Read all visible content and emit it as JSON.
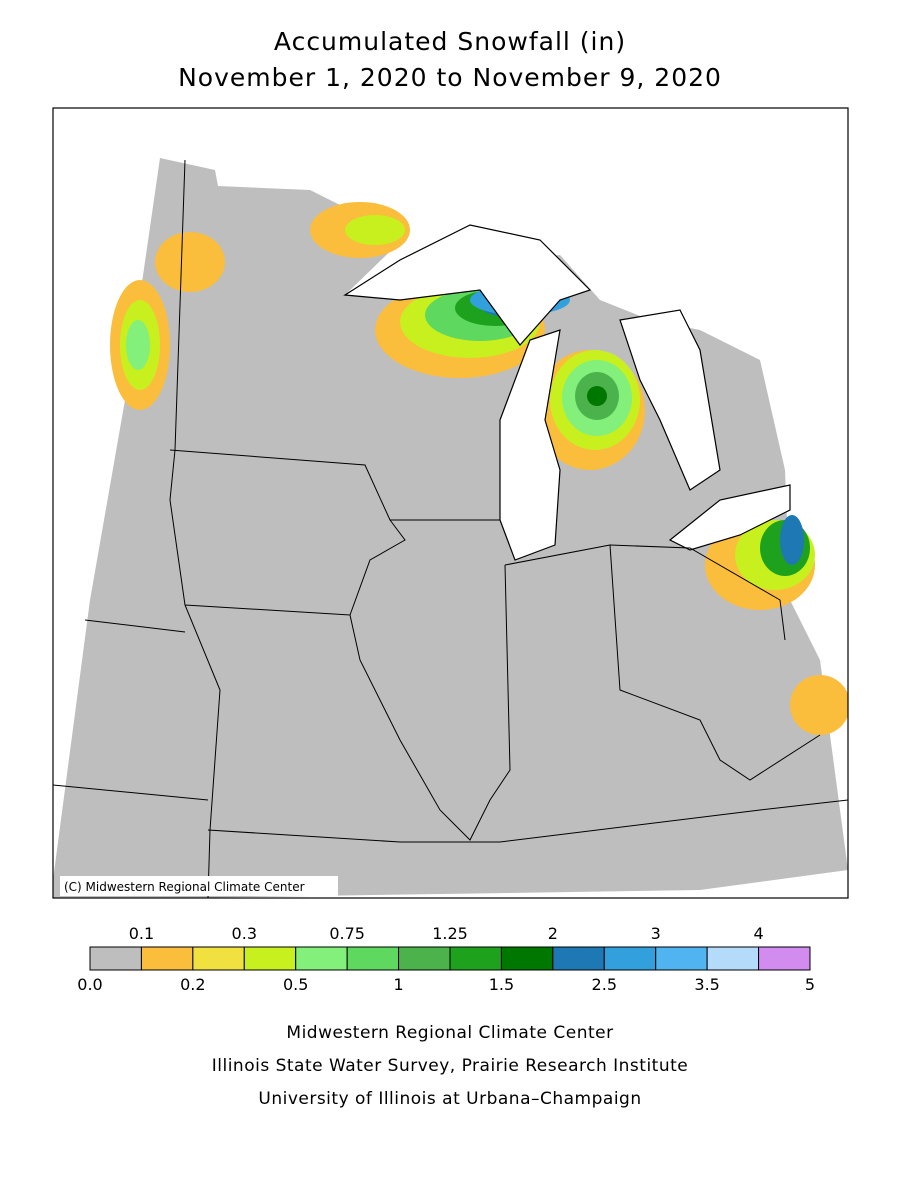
{
  "title": "Accumulated Snowfall (in)",
  "subtitle": "November 1, 2020 to November 9, 2020",
  "map": {
    "copyright": "(C) Midwestern Regional Climate Center"
  },
  "legend": {
    "colors": [
      "#bebebe",
      "#fbbd3c",
      "#f0e040",
      "#c8f01e",
      "#82f07a",
      "#5ed85e",
      "#4cb24c",
      "#1ea21e",
      "#007800",
      "#1e78b4",
      "#32a0dc",
      "#50b4f0",
      "#b4dcfa",
      "#d28cf0"
    ],
    "boundary_labels": [
      "0.0",
      "0.1",
      "0.2",
      "0.3",
      "0.5",
      "0.75",
      "1",
      "1.25",
      "1.5",
      "2",
      "2.5",
      "3",
      "3.5",
      "4",
      "5"
    ]
  },
  "footer": [
    "Midwestern Regional Climate Center",
    "Illinois State Water Survey, Prairie Research Institute",
    "University of Illinois at Urbana–Champaign"
  ]
}
